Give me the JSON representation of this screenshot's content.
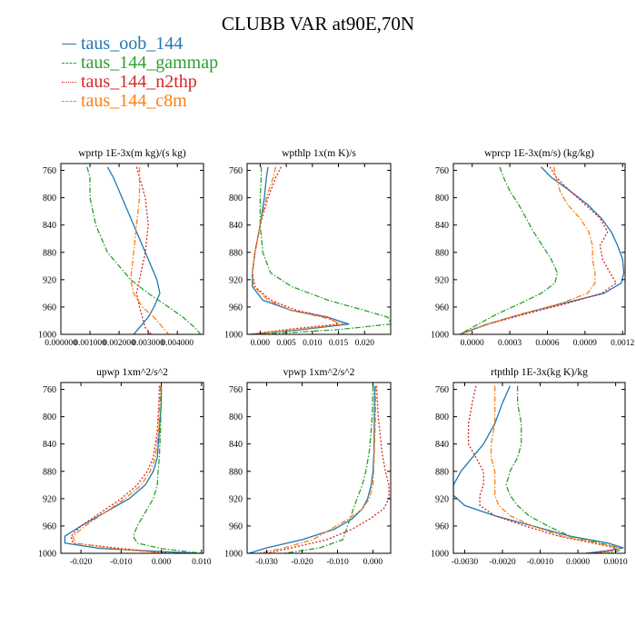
{
  "page_title": "CLUBB VAR at90E,70N",
  "colors": {
    "taus_oob_144": "#1f77b4",
    "taus_144_gammap": "#2ca02c",
    "taus_144_n2thp": "#d62728",
    "taus_144_c8m": "#ff7f0e"
  },
  "legend": [
    {
      "label": "taus_oob_144",
      "color": "#1f77b4",
      "dash": "solid"
    },
    {
      "label": "taus_144_gammap",
      "color": "#2ca02c",
      "dash": "dashdot"
    },
    {
      "label": "taus_144_n2thp",
      "color": "#d62728",
      "dash": "dotted"
    },
    {
      "label": "taus_144_c8m",
      "color": "#ff7f0e",
      "dash": "dashdot"
    }
  ],
  "chart_data": [
    {
      "type": "line",
      "title": "wprtp  1E-3x(m kg)/(s kg)",
      "xlim": [
        0.0,
        0.0049
      ],
      "ylim": [
        1000,
        750
      ],
      "xticks": [
        0.0,
        0.001,
        0.002,
        0.003,
        0.004
      ],
      "xtick_labels": [
        "0.000000",
        "0.001000",
        "0.002000",
        "0.003000",
        "0.004000"
      ],
      "yticks": [
        760,
        800,
        840,
        880,
        920,
        960,
        1000
      ],
      "ytick_labels": [
        "760",
        "800",
        "840",
        "880",
        "920",
        "960",
        "1000"
      ],
      "y": [
        755,
        770,
        800,
        840,
        880,
        920,
        940,
        960,
        975,
        990,
        1000
      ],
      "series": [
        {
          "name": "taus_oob_144",
          "values": [
            0.0016,
            0.0018,
            0.0021,
            0.0025,
            0.0029,
            0.0033,
            0.0034,
            0.0032,
            0.003,
            0.0027,
            0.0025
          ]
        },
        {
          "name": "taus_144_gammap",
          "values": [
            0.0009,
            0.001,
            0.001,
            0.0012,
            0.0016,
            0.0024,
            0.003,
            0.0037,
            0.0042,
            0.0046,
            0.0048
          ]
        },
        {
          "name": "taus_144_n2thp",
          "values": [
            0.0026,
            0.0027,
            0.0029,
            0.003,
            0.0029,
            0.0027,
            0.0026,
            0.0027,
            0.0028,
            0.0029,
            0.0031
          ]
        },
        {
          "name": "taus_144_c8m",
          "values": [
            0.0027,
            0.0027,
            0.0027,
            0.0026,
            0.0025,
            0.0024,
            0.0025,
            0.0028,
            0.0032,
            0.0035,
            0.0037
          ]
        }
      ]
    },
    {
      "type": "line",
      "title": "wpthlp  1x(m K)/s",
      "xlim": [
        -0.0025,
        0.025
      ],
      "ylim": [
        1000,
        750
      ],
      "xticks": [
        0.0,
        0.005,
        0.01,
        0.015,
        0.02
      ],
      "xtick_labels": [
        "0.000",
        "0.005",
        "0.010",
        "0.015",
        "0.020"
      ],
      "yticks": [
        760,
        800,
        840,
        880,
        920,
        960,
        1000
      ],
      "ytick_labels": [
        "760",
        "800",
        "840",
        "880",
        "920",
        "960",
        "1000"
      ],
      "y": [
        755,
        770,
        800,
        840,
        880,
        910,
        930,
        950,
        965,
        975,
        985,
        993,
        1000
      ],
      "series": [
        {
          "name": "taus_oob_144",
          "values": [
            0.0015,
            0.0012,
            0.0008,
            0.0,
            -0.001,
            -0.0015,
            -0.0015,
            0.0005,
            0.006,
            0.013,
            0.017,
            0.008,
            -0.002
          ]
        },
        {
          "name": "taus_144_gammap",
          "values": [
            0.0002,
            0.0002,
            0.0,
            0.0,
            0.0005,
            0.002,
            0.006,
            0.013,
            0.02,
            0.0245,
            0.025,
            0.015,
            0.0
          ]
        },
        {
          "name": "taus_144_n2thp",
          "values": [
            0.004,
            0.003,
            0.0015,
            0.0,
            -0.001,
            -0.0015,
            -0.001,
            0.002,
            0.007,
            0.013,
            0.015,
            0.005,
            -0.002
          ]
        },
        {
          "name": "taus_144_c8m",
          "values": [
            0.003,
            0.0025,
            0.0012,
            0.0,
            -0.001,
            -0.0015,
            -0.0012,
            0.0015,
            0.006,
            0.012,
            0.016,
            0.007,
            -0.002
          ]
        }
      ]
    },
    {
      "type": "line",
      "title": "wprcp  1E-3x(m/s) (kg/kg)",
      "xlim": [
        -0.00015,
        0.00122
      ],
      "ylim": [
        1000,
        750
      ],
      "xticks": [
        0.0,
        0.0003,
        0.0006,
        0.0009,
        0.0012
      ],
      "xtick_labels": [
        "0.0000",
        "0.0003",
        "0.0006",
        "0.0009",
        "0.0012"
      ],
      "yticks": [
        760,
        800,
        840,
        880,
        920,
        960,
        1000
      ],
      "ytick_labels": [
        "760",
        "800",
        "840",
        "880",
        "920",
        "960",
        "1000"
      ],
      "y": [
        755,
        770,
        790,
        810,
        830,
        850,
        870,
        890,
        910,
        925,
        940,
        955,
        970,
        985,
        995,
        1000
      ],
      "series": [
        {
          "name": "taus_oob_144",
          "values": [
            0.00055,
            0.00063,
            0.00078,
            0.00092,
            0.00103,
            0.00111,
            0.00116,
            0.0012,
            0.00121,
            0.00119,
            0.00105,
            0.00072,
            0.0004,
            0.00012,
            -3e-05,
            -0.0001
          ]
        },
        {
          "name": "taus_144_gammap",
          "values": [
            0.00022,
            0.00025,
            0.0003,
            0.00037,
            0.00043,
            0.00049,
            0.00056,
            0.00063,
            0.00068,
            0.00066,
            0.00055,
            0.00038,
            0.0002,
            5e-05,
            -5e-05,
            -0.0001
          ]
        },
        {
          "name": "taus_144_n2thp",
          "values": [
            0.00062,
            0.00067,
            0.00078,
            0.0009,
            0.00102,
            0.00108,
            0.00102,
            0.00104,
            0.0011,
            0.00115,
            0.00103,
            0.00075,
            0.00043,
            0.00013,
            -2e-05,
            -0.0001
          ]
        },
        {
          "name": "taus_144_c8m",
          "values": [
            0.00065,
            0.00067,
            0.0007,
            0.00076,
            0.00086,
            0.00093,
            0.00096,
            0.00096,
            0.00098,
            0.00098,
            0.00092,
            0.0007,
            0.0004,
            0.00012,
            -2e-05,
            -0.0001
          ]
        }
      ]
    },
    {
      "type": "line",
      "title": "upwp  1xm^2/s^2",
      "xlim": [
        -0.025,
        0.0105
      ],
      "ylim": [
        1000,
        750
      ],
      "xticks": [
        -0.02,
        -0.01,
        0.0,
        0.01
      ],
      "xtick_labels": [
        "-0.020",
        "-0.010",
        "0.000",
        "0.010"
      ],
      "yticks": [
        760,
        800,
        840,
        880,
        920,
        960,
        1000
      ],
      "ytick_labels": [
        "760",
        "800",
        "840",
        "880",
        "920",
        "960",
        "1000"
      ],
      "y": [
        755,
        780,
        820,
        860,
        880,
        900,
        920,
        940,
        960,
        975,
        985,
        993,
        1000
      ],
      "series": [
        {
          "name": "taus_oob_144",
          "values": [
            0.0,
            0.0,
            -0.0005,
            -0.001,
            -0.002,
            -0.004,
            -0.008,
            -0.014,
            -0.02,
            -0.024,
            -0.024,
            -0.015,
            0.009
          ]
        },
        {
          "name": "taus_144_gammap",
          "values": [
            -0.0001,
            -0.0001,
            -0.0002,
            -0.0005,
            -0.0008,
            -0.001,
            -0.002,
            -0.004,
            -0.006,
            -0.007,
            -0.006,
            0.0,
            0.01
          ]
        },
        {
          "name": "taus_144_n2thp",
          "values": [
            -0.0005,
            -0.0006,
            -0.001,
            -0.002,
            -0.0035,
            -0.006,
            -0.01,
            -0.015,
            -0.02,
            -0.0225,
            -0.022,
            -0.01,
            0.002
          ]
        },
        {
          "name": "taus_144_c8m",
          "values": [
            -0.0003,
            -0.0004,
            -0.0007,
            -0.0015,
            -0.0028,
            -0.005,
            -0.009,
            -0.014,
            -0.019,
            -0.022,
            -0.0215,
            -0.012,
            0.001
          ]
        }
      ]
    },
    {
      "type": "line",
      "title": "vpwp  1xm^2/s^2",
      "xlim": [
        -0.0355,
        0.005
      ],
      "ylim": [
        1000,
        750
      ],
      "xticks": [
        -0.03,
        -0.02,
        -0.01,
        0.0
      ],
      "xtick_labels": [
        "-0.030",
        "-0.020",
        "-0.010",
        "0.000"
      ],
      "yticks": [
        760,
        800,
        840,
        880,
        920,
        960,
        1000
      ],
      "ytick_labels": [
        "760",
        "800",
        "840",
        "880",
        "920",
        "960",
        "1000"
      ],
      "y": [
        755,
        800,
        850,
        880,
        900,
        920,
        935,
        950,
        965,
        980,
        992,
        1000
      ],
      "series": [
        {
          "name": "taus_oob_144",
          "values": [
            0.0005,
            0.0004,
            0.0003,
            0.0,
            -0.0005,
            -0.0015,
            -0.003,
            -0.006,
            -0.011,
            -0.02,
            -0.03,
            -0.035
          ]
        },
        {
          "name": "taus_144_gammap",
          "values": [
            0.0,
            -0.0002,
            -0.001,
            -0.002,
            -0.003,
            -0.0045,
            -0.0055,
            -0.0065,
            -0.0075,
            -0.0085,
            -0.015,
            -0.025
          ]
        },
        {
          "name": "taus_144_n2thp",
          "values": [
            0.001,
            0.0015,
            0.0025,
            0.0035,
            0.0045,
            0.0045,
            0.003,
            -0.001,
            -0.006,
            -0.013,
            -0.023,
            -0.03
          ]
        },
        {
          "name": "taus_144_c8m",
          "values": [
            0.0008,
            0.0007,
            0.0004,
            0.0002,
            0.0,
            -0.001,
            -0.003,
            -0.007,
            -0.012,
            -0.017,
            -0.025,
            -0.032
          ]
        }
      ]
    },
    {
      "type": "line",
      "title": "rtpthlp  1E-3x(kg K)/kg",
      "xlim": [
        -0.0033,
        0.00125
      ],
      "ylim": [
        1000,
        750
      ],
      "xticks": [
        -0.003,
        -0.002,
        -0.001,
        0.0,
        0.001
      ],
      "xtick_labels": [
        "-0.0030",
        "-0.0020",
        "-0.0010",
        "0.0000",
        "0.0010"
      ],
      "yticks": [
        760,
        800,
        840,
        880,
        920,
        960,
        1000
      ],
      "ytick_labels": [
        "760",
        "800",
        "840",
        "880",
        "920",
        "960",
        "1000"
      ],
      "y": [
        755,
        780,
        810,
        840,
        860,
        880,
        900,
        915,
        930,
        945,
        960,
        975,
        985,
        992,
        996,
        1000
      ],
      "series": [
        {
          "name": "taus_oob_144",
          "values": [
            -0.0018,
            -0.002,
            -0.0022,
            -0.0025,
            -0.0028,
            -0.0031,
            -0.0033,
            -0.0033,
            -0.003,
            -0.0022,
            -0.0012,
            -0.0002,
            0.0008,
            0.0012,
            0.0008,
            0.0002
          ]
        },
        {
          "name": "taus_144_gammap",
          "values": [
            -0.0016,
            -0.0016,
            -0.0015,
            -0.0015,
            -0.0016,
            -0.0018,
            -0.0019,
            -0.0018,
            -0.0016,
            -0.0013,
            -0.0008,
            -0.0002,
            0.0006,
            0.0011,
            0.0011,
            0.0008
          ]
        },
        {
          "name": "taus_144_n2thp",
          "values": [
            -0.0027,
            -0.0028,
            -0.0029,
            -0.0029,
            -0.0027,
            -0.0025,
            -0.0025,
            -0.0026,
            -0.0026,
            -0.0022,
            -0.0014,
            -0.0005,
            0.0004,
            0.001,
            0.0009,
            0.0004
          ]
        },
        {
          "name": "taus_144_c8m",
          "values": [
            -0.0022,
            -0.0022,
            -0.0022,
            -0.0023,
            -0.0023,
            -0.0022,
            -0.0022,
            -0.0022,
            -0.0021,
            -0.0018,
            -0.0012,
            -0.0004,
            0.0005,
            0.0011,
            0.001,
            0.0005
          ]
        }
      ]
    }
  ]
}
